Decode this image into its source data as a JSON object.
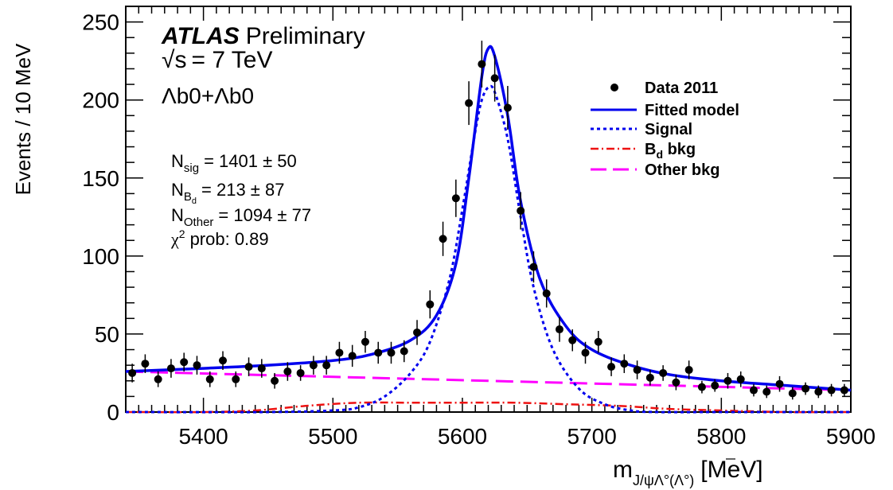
{
  "chart_data": {
    "type": "scatter",
    "title": "",
    "xlabel": "m_{J/ψΛ°(Λ̄°)} [MeV]",
    "xlabel_main": "m",
    "xlabel_sub": "J/ψΛ°(Λ°)",
    "xlabel_unit": "[MeV]",
    "ylabel": "Events / 10 MeV",
    "xlim": [
      5340,
      5900
    ],
    "ylim": [
      0,
      260
    ],
    "x_ticks": [
      5400,
      5500,
      5600,
      5700,
      5800,
      5900
    ],
    "y_ticks": [
      0,
      50,
      100,
      150,
      200,
      250
    ],
    "grid": false,
    "legend_position": "top-right",
    "experiment": "ATLAS",
    "experiment_tag": "Preliminary",
    "energy_sqrt": "√s",
    "energy_value": "= 7 TeV",
    "particle": "Λb0+Λb0",
    "fit_results": {
      "nsig_main": "N",
      "nsig_sub": "sig",
      "nsig_value": "= 1401 ± 50",
      "nbd_main": "N",
      "nbd_sub": "B",
      "nbd_subsub": "d",
      "nbd_value": "= 213 ± 87",
      "nother_main": "N",
      "nother_sub": "Other",
      "nother_value": "= 1094 ± 77",
      "chi2_main": "χ",
      "chi2_sup": "2",
      "chi2_value": "prob: 0.89"
    },
    "series": [
      {
        "name": "Data 2011",
        "style": "points",
        "color": "#000000",
        "x": [
          5345,
          5355,
          5365,
          5375,
          5385,
          5395,
          5405,
          5415,
          5425,
          5435,
          5445,
          5455,
          5465,
          5475,
          5485,
          5495,
          5505,
          5515,
          5525,
          5535,
          5545,
          5555,
          5565,
          5575,
          5585,
          5595,
          5605,
          5615,
          5625,
          5635,
          5645,
          5655,
          5665,
          5675,
          5685,
          5695,
          5705,
          5715,
          5725,
          5735,
          5745,
          5755,
          5765,
          5775,
          5785,
          5795,
          5805,
          5815,
          5825,
          5835,
          5845,
          5855,
          5865,
          5875,
          5885,
          5895
        ],
        "y": [
          25,
          31,
          21,
          28,
          32,
          30,
          21,
          33,
          21,
          29,
          28,
          20,
          26,
          25,
          30,
          30,
          38,
          36,
          45,
          38,
          38,
          39,
          51,
          69,
          111,
          137,
          198,
          223,
          214,
          195,
          129,
          93,
          76,
          53,
          46,
          38,
          45,
          29,
          31,
          27,
          22,
          25,
          19,
          27,
          16,
          17,
          20,
          21,
          14,
          13,
          18,
          12,
          15,
          13,
          14,
          14
        ],
        "yerr": [
          6,
          6,
          5,
          6,
          6,
          6,
          5,
          6,
          5,
          6,
          6,
          5,
          6,
          5,
          6,
          6,
          7,
          7,
          7,
          7,
          7,
          7,
          8,
          9,
          11,
          12,
          14,
          15,
          15,
          14,
          12,
          10,
          9,
          8,
          7,
          7,
          7,
          6,
          6,
          6,
          5,
          5,
          5,
          6,
          4,
          4,
          5,
          5,
          4,
          4,
          5,
          4,
          4,
          4,
          4,
          4
        ]
      },
      {
        "name": "Fitted model",
        "style": "solid",
        "color": "#0000ee",
        "x": [
          5340,
          5400,
          5450,
          5500,
          5530,
          5560,
          5580,
          5595,
          5605,
          5615,
          5620,
          5625,
          5635,
          5645,
          5660,
          5680,
          5700,
          5730,
          5760,
          5800,
          5850,
          5900
        ],
        "y": [
          26,
          28,
          30,
          33,
          37,
          46,
          62,
          95,
          150,
          215,
          233,
          228,
          190,
          135,
          85,
          55,
          40,
          30,
          24,
          20,
          17,
          14
        ]
      },
      {
        "name": "Signal",
        "style": "dotted",
        "color": "#0000ee",
        "x": [
          5340,
          5450,
          5500,
          5520,
          5540,
          5560,
          5575,
          5590,
          5600,
          5610,
          5615,
          5620,
          5625,
          5635,
          5645,
          5655,
          5670,
          5690,
          5710,
          5730,
          5750,
          5800,
          5900
        ],
        "y": [
          0,
          0,
          1,
          3,
          10,
          25,
          45,
          85,
          130,
          180,
          200,
          208,
          205,
          175,
          125,
          80,
          40,
          15,
          5,
          1,
          0,
          0,
          0
        ]
      },
      {
        "name": "B_d bkg",
        "style": "dashdot",
        "color": "#ee1111",
        "x": [
          5340,
          5400,
          5440,
          5480,
          5520,
          5560,
          5600,
          5640,
          5680,
          5720,
          5760,
          5800,
          5850,
          5900
        ],
        "y": [
          0,
          0,
          1,
          4,
          6,
          6,
          6,
          6,
          5,
          4,
          2,
          1,
          0,
          0
        ]
      },
      {
        "name": "Other bkg",
        "style": "longdash",
        "color": "#ff00ff",
        "x": [
          5340,
          5900
        ],
        "y": [
          26,
          14
        ]
      }
    ]
  },
  "legend": [
    {
      "label": "Data 2011",
      "label_main": "Data 2011"
    },
    {
      "label": "Fitted model",
      "label_main": "Fitted model"
    },
    {
      "label": "Signal",
      "label_main": "Signal"
    },
    {
      "label": "B_d bkg",
      "label_main": "B",
      "label_sub": "d",
      "label_rest": " bkg"
    },
    {
      "label": "Other bkg",
      "label_main": "Other bkg"
    }
  ]
}
